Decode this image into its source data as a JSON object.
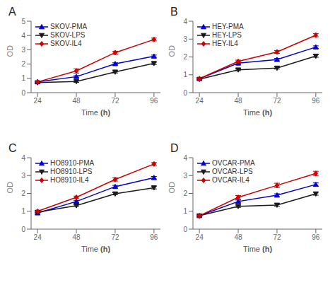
{
  "chart_data": [
    {
      "type": "line",
      "title": "A",
      "x_label": "Time (h)",
      "y_label": "OD",
      "x": [
        24,
        48,
        72,
        96
      ],
      "xlim": [
        20,
        100
      ],
      "xticks": [
        24,
        48,
        72,
        96
      ],
      "ylim": [
        0,
        5
      ],
      "yticks": [
        0,
        1,
        2,
        3,
        4,
        5
      ],
      "grid": false,
      "legend": "upper left",
      "series": [
        {
          "name": "SKOV-PMA",
          "color": "#0000cc",
          "marker": "triangle-up",
          "values": [
            0.75,
            1.12,
            2.02,
            2.55
          ],
          "errors": [
            0.04,
            0.07,
            0.07,
            0.08
          ]
        },
        {
          "name": "SKOV-LPS",
          "color": "#1a1a1a",
          "marker": "triangle-down",
          "values": [
            0.7,
            0.78,
            1.45,
            2.05
          ],
          "errors": [
            0.04,
            0.06,
            0.07,
            0.08
          ]
        },
        {
          "name": "SKOV-IL4",
          "color": "#cc0000",
          "marker": "diamond",
          "values": [
            0.75,
            1.52,
            2.8,
            3.72
          ],
          "errors": [
            0.04,
            0.15,
            0.1,
            0.1
          ]
        }
      ]
    },
    {
      "type": "line",
      "title": "B",
      "x_label": "Time (h)",
      "y_label": "OD",
      "x": [
        24,
        48,
        72,
        96
      ],
      "xlim": [
        20,
        100
      ],
      "xticks": [
        24,
        48,
        72,
        96
      ],
      "ylim": [
        0,
        4
      ],
      "yticks": [
        0,
        1,
        2,
        3,
        4
      ],
      "grid": false,
      "legend": "upper left",
      "series": [
        {
          "name": "HEY-PMA",
          "color": "#0000cc",
          "marker": "triangle-up",
          "values": [
            0.78,
            1.65,
            1.85,
            2.55
          ],
          "errors": [
            0.04,
            0.06,
            0.07,
            0.07
          ]
        },
        {
          "name": "HEY-LPS",
          "color": "#1a1a1a",
          "marker": "triangle-down",
          "values": [
            0.75,
            1.28,
            1.38,
            2.05
          ],
          "errors": [
            0.04,
            0.05,
            0.06,
            0.07
          ]
        },
        {
          "name": "HEY-IL4",
          "color": "#cc0000",
          "marker": "diamond",
          "values": [
            0.78,
            1.75,
            2.28,
            3.22
          ],
          "errors": [
            0.04,
            0.07,
            0.08,
            0.09
          ]
        }
      ]
    },
    {
      "type": "line",
      "title": "C",
      "x_label": "Time (h)",
      "y_label": "OD",
      "x": [
        24,
        48,
        72,
        96
      ],
      "xlim": [
        20,
        100
      ],
      "xticks": [
        24,
        48,
        72,
        96
      ],
      "ylim": [
        0,
        4
      ],
      "yticks": [
        0,
        1,
        2,
        3,
        4
      ],
      "grid": false,
      "legend": "upper left",
      "series": [
        {
          "name": "HO8910-PMA",
          "color": "#0000cc",
          "marker": "triangle-up",
          "values": [
            0.9,
            1.55,
            2.38,
            2.88
          ],
          "errors": [
            0.04,
            0.06,
            0.07,
            0.07
          ]
        },
        {
          "name": "HO8910-LPS",
          "color": "#1a1a1a",
          "marker": "triangle-down",
          "values": [
            0.95,
            1.32,
            1.98,
            2.32
          ],
          "errors": [
            0.04,
            0.05,
            0.06,
            0.07
          ]
        },
        {
          "name": "HO8910-IL4",
          "color": "#cc0000",
          "marker": "diamond",
          "values": [
            1.0,
            1.78,
            2.78,
            3.65
          ],
          "errors": [
            0.04,
            0.07,
            0.09,
            0.08
          ]
        }
      ]
    },
    {
      "type": "line",
      "title": "D",
      "x_label": "Time (h)",
      "y_label": "OD",
      "x": [
        24,
        48,
        72,
        96
      ],
      "xlim": [
        20,
        100
      ],
      "xticks": [
        24,
        48,
        72,
        96
      ],
      "ylim": [
        0,
        4
      ],
      "yticks": [
        0,
        1,
        2,
        3,
        4
      ],
      "grid": false,
      "legend": "upper left",
      "series": [
        {
          "name": "OVCAR-PMA",
          "color": "#0000cc",
          "marker": "triangle-up",
          "values": [
            0.75,
            1.55,
            1.9,
            2.5
          ],
          "errors": [
            0.04,
            0.08,
            0.08,
            0.09
          ]
        },
        {
          "name": "OVCAR-LPS",
          "color": "#1a1a1a",
          "marker": "triangle-down",
          "values": [
            0.75,
            1.28,
            1.35,
            1.98
          ],
          "errors": [
            0.04,
            0.06,
            0.07,
            0.08
          ]
        },
        {
          "name": "OVCAR-IL4",
          "color": "#cc0000",
          "marker": "diamond",
          "values": [
            0.75,
            1.78,
            2.45,
            3.12
          ],
          "errors": [
            0.04,
            0.1,
            0.12,
            0.12
          ]
        }
      ]
    }
  ]
}
